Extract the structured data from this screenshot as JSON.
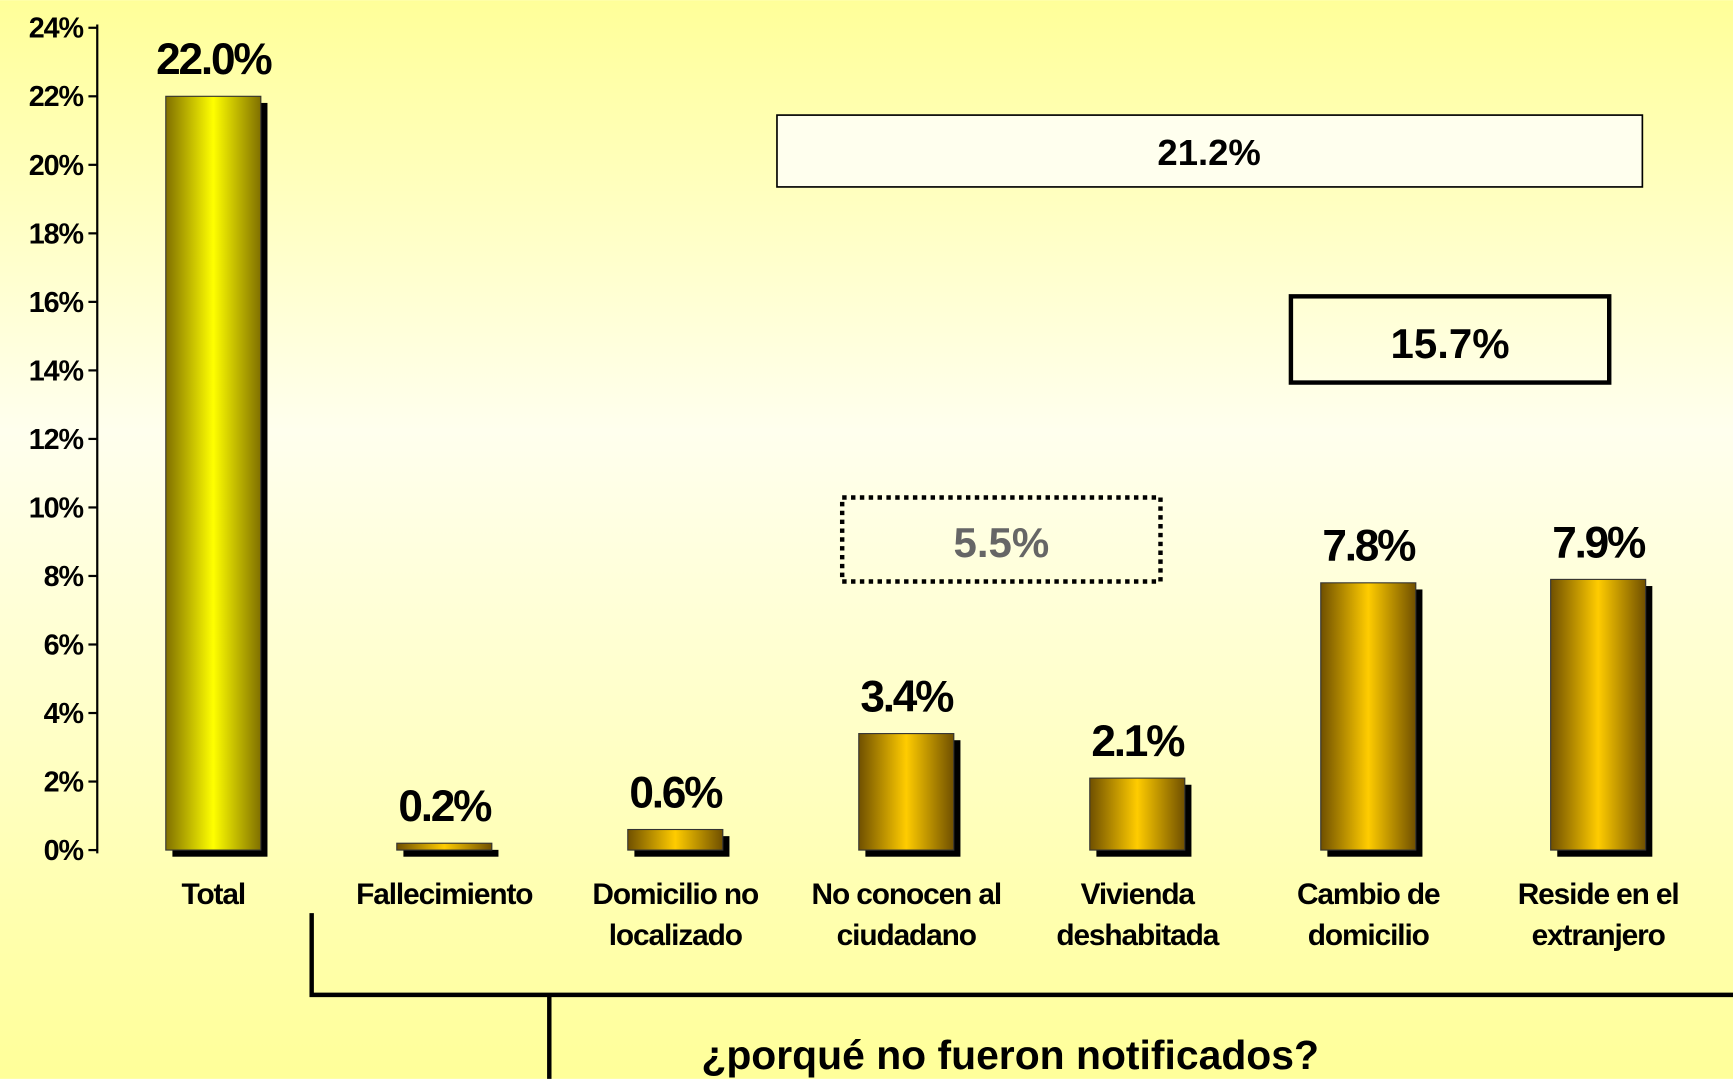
{
  "chart_data": {
    "type": "bar",
    "categories": [
      "Total",
      "Fallecimiento",
      "Domicilio no\nlocalizado",
      "No conocen al\nciudadano",
      "Vivienda\ndeshabitada",
      "Cambio de\ndomicilio",
      "Reside en el\nextranjero"
    ],
    "values": [
      22.0,
      0.2,
      0.6,
      3.4,
      2.1,
      7.8,
      7.9
    ],
    "value_labels": [
      "22.0%",
      "0.2%",
      "0.6%",
      "3.4%",
      "2.1%",
      "7.8%",
      "7.9%"
    ],
    "colors": [
      "#ffff00",
      "#ffcc00",
      "#ffcc00",
      "#ffcc00",
      "#ffcc00",
      "#ffcc00",
      "#ffcc00"
    ],
    "ylim": [
      0,
      24
    ],
    "yticks": [
      {
        "value": 0,
        "label": "0%"
      },
      {
        "value": 2,
        "label": "2%"
      },
      {
        "value": 4,
        "label": "4%"
      },
      {
        "value": 6,
        "label": "6%"
      },
      {
        "value": 8,
        "label": "8%"
      },
      {
        "value": 10,
        "label": "10%"
      },
      {
        "value": 12,
        "label": "12%"
      },
      {
        "value": 14,
        "label": "14%"
      },
      {
        "value": 16,
        "label": "16%"
      },
      {
        "value": 18,
        "label": "18%"
      },
      {
        "value": 20,
        "label": "20%"
      },
      {
        "value": 22,
        "label": "22%"
      },
      {
        "value": 24,
        "label": "24%"
      }
    ],
    "annotations": [
      "21.2%",
      "15.7%",
      "5.5%"
    ],
    "xlabel": "¿porqué no fueron notificados?"
  }
}
